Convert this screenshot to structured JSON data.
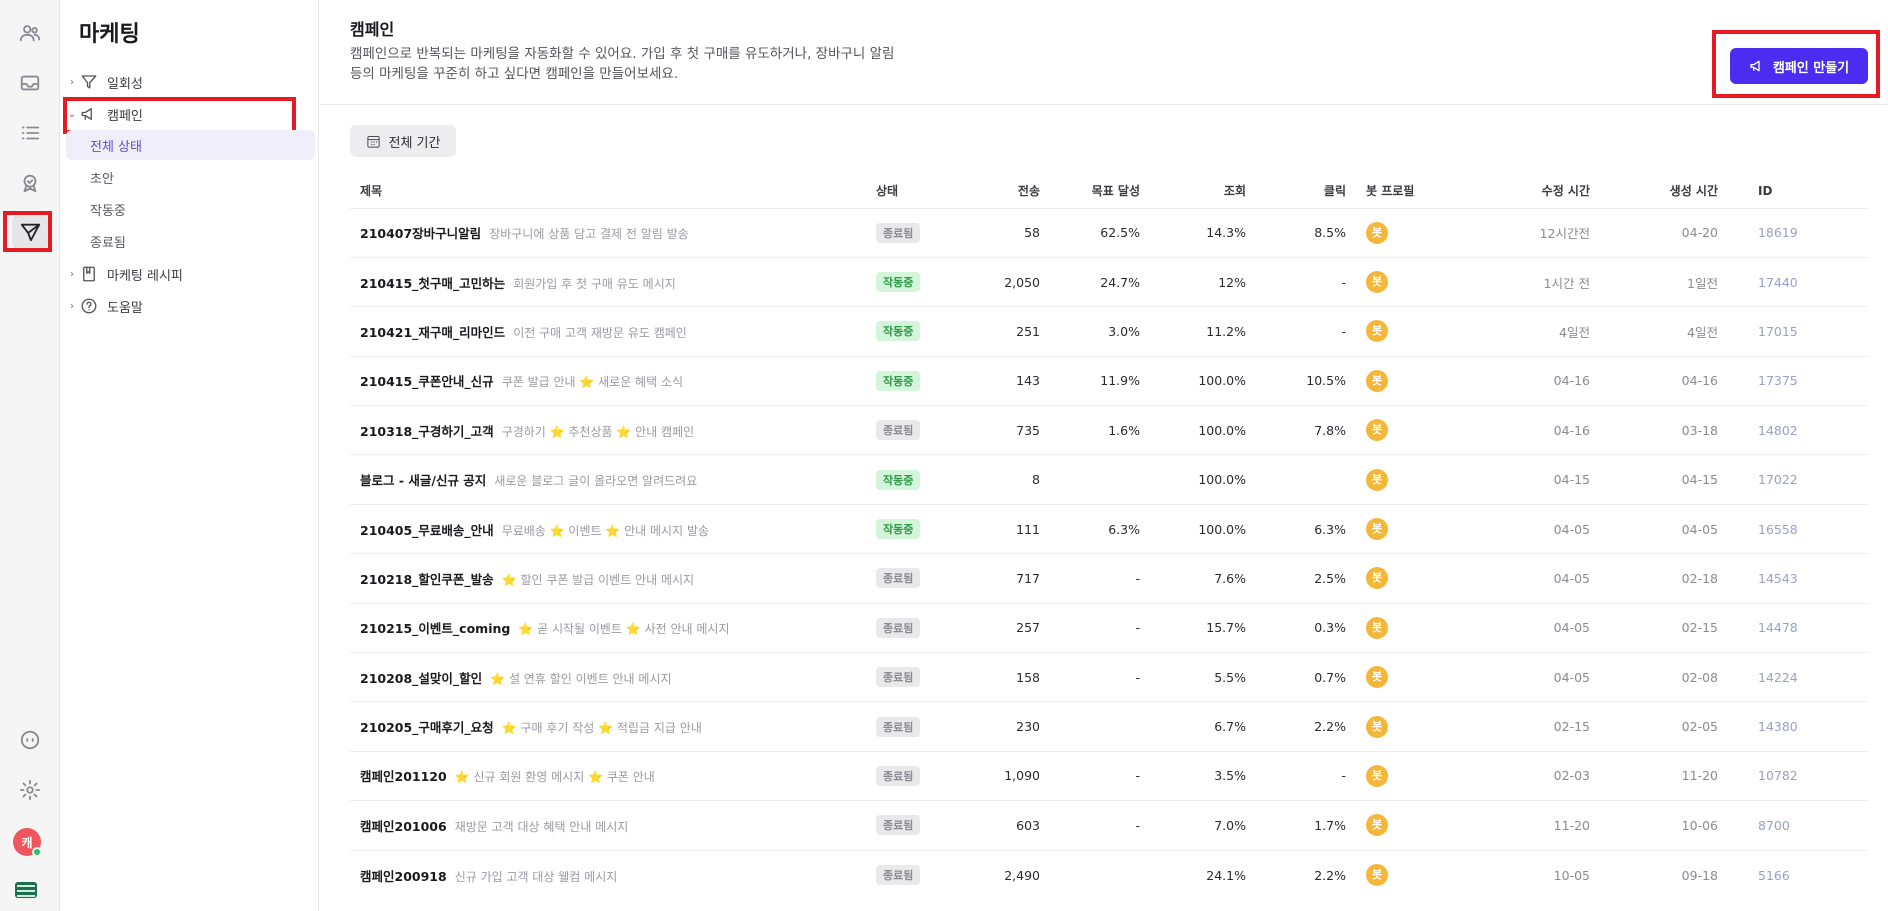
{
  "sidebar": {
    "title": "마케팅",
    "items": [
      {
        "label": "일회성"
      },
      {
        "label": "캠페인"
      },
      {
        "label": "마케팅 레시피"
      },
      {
        "label": "도움말"
      }
    ],
    "campaign_subitems": [
      {
        "label": "전체 상태"
      },
      {
        "label": "초안"
      },
      {
        "label": "작동중"
      },
      {
        "label": "종료됨"
      }
    ]
  },
  "user": {
    "avatar_initial": "캐"
  },
  "header": {
    "title": "캠페인",
    "description": "캠페인으로 반복되는 마케팅을 자동화할 수 있어요. 가입 후 첫 구매를 유도하거나, 장바구니 알림 등의 마케팅을 꾸준히 하고 싶다면 캠페인을 만들어보세요.",
    "create_button": "캠페인 만들기"
  },
  "filter": {
    "period_label": "전체 기간"
  },
  "table": {
    "columns": [
      "제목",
      "상태",
      "전송",
      "목표 달성",
      "조회",
      "클릭",
      "봇 프로필",
      "수정 시간",
      "생성 시간",
      "ID"
    ],
    "rows": [
      {
        "title": "210407장바구니알림",
        "desc": "장바구니에 상품 담고 결제 전 알림 발송",
        "status": "종료됨",
        "sent": "58",
        "goal": "62.5%",
        "views": "14.3%",
        "clicks": "8.5%",
        "bot": "봇",
        "modified": "12시간전",
        "created": "04-20",
        "id": "18619"
      },
      {
        "title": "210415_첫구매_고민하는",
        "desc": "회원가입 후 첫 구매 유도 메시지",
        "status": "작동중",
        "sent": "2,050",
        "goal": "24.7%",
        "views": "12%",
        "clicks": "-",
        "bot": "봇",
        "modified": "1시간 전",
        "created": "1일전",
        "id": "17440"
      },
      {
        "title": "210421_재구매_리마인드",
        "desc": "이전 구매 고객 재방문 유도 캠페인",
        "status": "작동중",
        "sent": "251",
        "goal": "3.0%",
        "views": "11.2%",
        "clicks": "-",
        "bot": "봇",
        "modified": "4일전",
        "created": "4일전",
        "id": "17015"
      },
      {
        "title": "210415_쿠폰안내_신규",
        "desc": "쿠폰 발급 안내 ⭐ 새로운 혜택 소식",
        "status": "작동중",
        "sent": "143",
        "goal": "11.9%",
        "views": "100.0%",
        "clicks": "10.5%",
        "bot": "봇",
        "modified": "04-16",
        "created": "04-16",
        "id": "17375"
      },
      {
        "title": "210318_구경하기_고객",
        "desc": "구경하기 ⭐ 추천상품 ⭐ 안내 캠페인",
        "status": "종료됨",
        "sent": "735",
        "goal": "1.6%",
        "views": "100.0%",
        "clicks": "7.8%",
        "bot": "봇",
        "modified": "04-16",
        "created": "03-18",
        "id": "14802"
      },
      {
        "title": "블로그 - 새글/신규 공지",
        "desc": "새로운 블로그 글이 올라오면 알려드려요",
        "status": "작동중",
        "sent": "8",
        "goal": "",
        "views": "100.0%",
        "clicks": "",
        "bot": "봇",
        "modified": "04-15",
        "created": "04-15",
        "id": "17022"
      },
      {
        "title": "210405_무료배송_안내",
        "desc": "무료배송 ⭐ 이벤트 ⭐ 안내 메시지 발송",
        "status": "작동중",
        "sent": "111",
        "goal": "6.3%",
        "views": "100.0%",
        "clicks": "6.3%",
        "bot": "봇",
        "modified": "04-05",
        "created": "04-05",
        "id": "16558"
      },
      {
        "title": "210218_할인쿠폰_발송",
        "desc": "⭐ 할인 쿠폰 발급 이벤트 안내 메시지",
        "status": "종료됨",
        "sent": "717",
        "goal": "-",
        "views": "7.6%",
        "clicks": "2.5%",
        "bot": "봇",
        "modified": "04-05",
        "created": "02-18",
        "id": "14543"
      },
      {
        "title": "210215_이벤트_coming",
        "desc": "⭐ 곧 시작될 이벤트 ⭐ 사전 안내 메시지",
        "status": "종료됨",
        "sent": "257",
        "goal": "-",
        "views": "15.7%",
        "clicks": "0.3%",
        "bot": "봇",
        "modified": "04-05",
        "created": "02-15",
        "id": "14478"
      },
      {
        "title": "210208_설맞이_할인",
        "desc": "⭐ 설 연휴 할인 이벤트 안내 메시지",
        "status": "종료됨",
        "sent": "158",
        "goal": "-",
        "views": "5.5%",
        "clicks": "0.7%",
        "bot": "봇",
        "modified": "04-05",
        "created": "02-08",
        "id": "14224"
      },
      {
        "title": "210205_구매후기_요청",
        "desc": "⭐ 구매 후기 작성 ⭐ 적립금 지급 안내",
        "status": "종료됨",
        "sent": "230",
        "goal": "",
        "views": "6.7%",
        "clicks": "2.2%",
        "bot": "봇",
        "modified": "02-15",
        "created": "02-05",
        "id": "14380"
      },
      {
        "title": "캠페인201120",
        "desc": "⭐ 신규 회원 환영 메시지 ⭐ 쿠폰 안내",
        "status": "종료됨",
        "sent": "1,090",
        "goal": "-",
        "views": "3.5%",
        "clicks": "-",
        "bot": "봇",
        "modified": "02-03",
        "created": "11-20",
        "id": "10782"
      },
      {
        "title": "캠페인201006",
        "desc": "재방문 고객 대상 혜택 안내 메시지",
        "status": "종료됨",
        "sent": "603",
        "goal": "-",
        "views": "7.0%",
        "clicks": "1.7%",
        "bot": "봇",
        "modified": "11-20",
        "created": "10-06",
        "id": "8700"
      },
      {
        "title": "캠페인200918",
        "desc": "신규 가입 고객 대상 웰컴 메시지",
        "status": "종료됨",
        "sent": "2,490",
        "goal": "",
        "views": "24.1%",
        "clicks": "2.2%",
        "bot": "봇",
        "modified": "10-05",
        "created": "09-18",
        "id": "5166"
      }
    ]
  }
}
